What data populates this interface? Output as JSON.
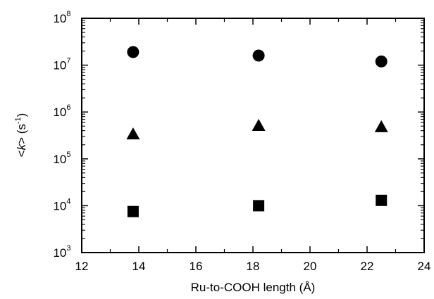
{
  "chart_data": {
    "type": "scatter",
    "title": "",
    "xlabel": "Ru-to-COOH length (Å)",
    "ylabel_parts": {
      "open": "<",
      "var": "k",
      "close": "> (s",
      "sup": "-1",
      "end": ")"
    },
    "xlim": [
      12,
      24
    ],
    "ylim": [
      1000,
      100000000
    ],
    "yscale": "log",
    "x_ticks": [
      12,
      14,
      16,
      18,
      20,
      22,
      24
    ],
    "y_ticks": [
      {
        "base": "10",
        "exp": "3",
        "value": 1000
      },
      {
        "base": "10",
        "exp": "4",
        "value": 10000
      },
      {
        "base": "10",
        "exp": "5",
        "value": 100000
      },
      {
        "base": "10",
        "exp": "6",
        "value": 1000000
      },
      {
        "base": "10",
        "exp": "7",
        "value": 10000000
      },
      {
        "base": "10",
        "exp": "8",
        "value": 100000000
      }
    ],
    "grid": false,
    "series": [
      {
        "marker": "circle",
        "points": [
          {
            "x": 13.8,
            "y": 19000000
          },
          {
            "x": 18.2,
            "y": 16000000
          },
          {
            "x": 22.5,
            "y": 12000000
          }
        ]
      },
      {
        "marker": "triangle",
        "points": [
          {
            "x": 13.8,
            "y": 330000
          },
          {
            "x": 18.2,
            "y": 500000
          },
          {
            "x": 22.5,
            "y": 470000
          }
        ]
      },
      {
        "marker": "square",
        "points": [
          {
            "x": 13.8,
            "y": 7500
          },
          {
            "x": 18.2,
            "y": 10000
          },
          {
            "x": 22.5,
            "y": 13000
          }
        ]
      }
    ]
  }
}
